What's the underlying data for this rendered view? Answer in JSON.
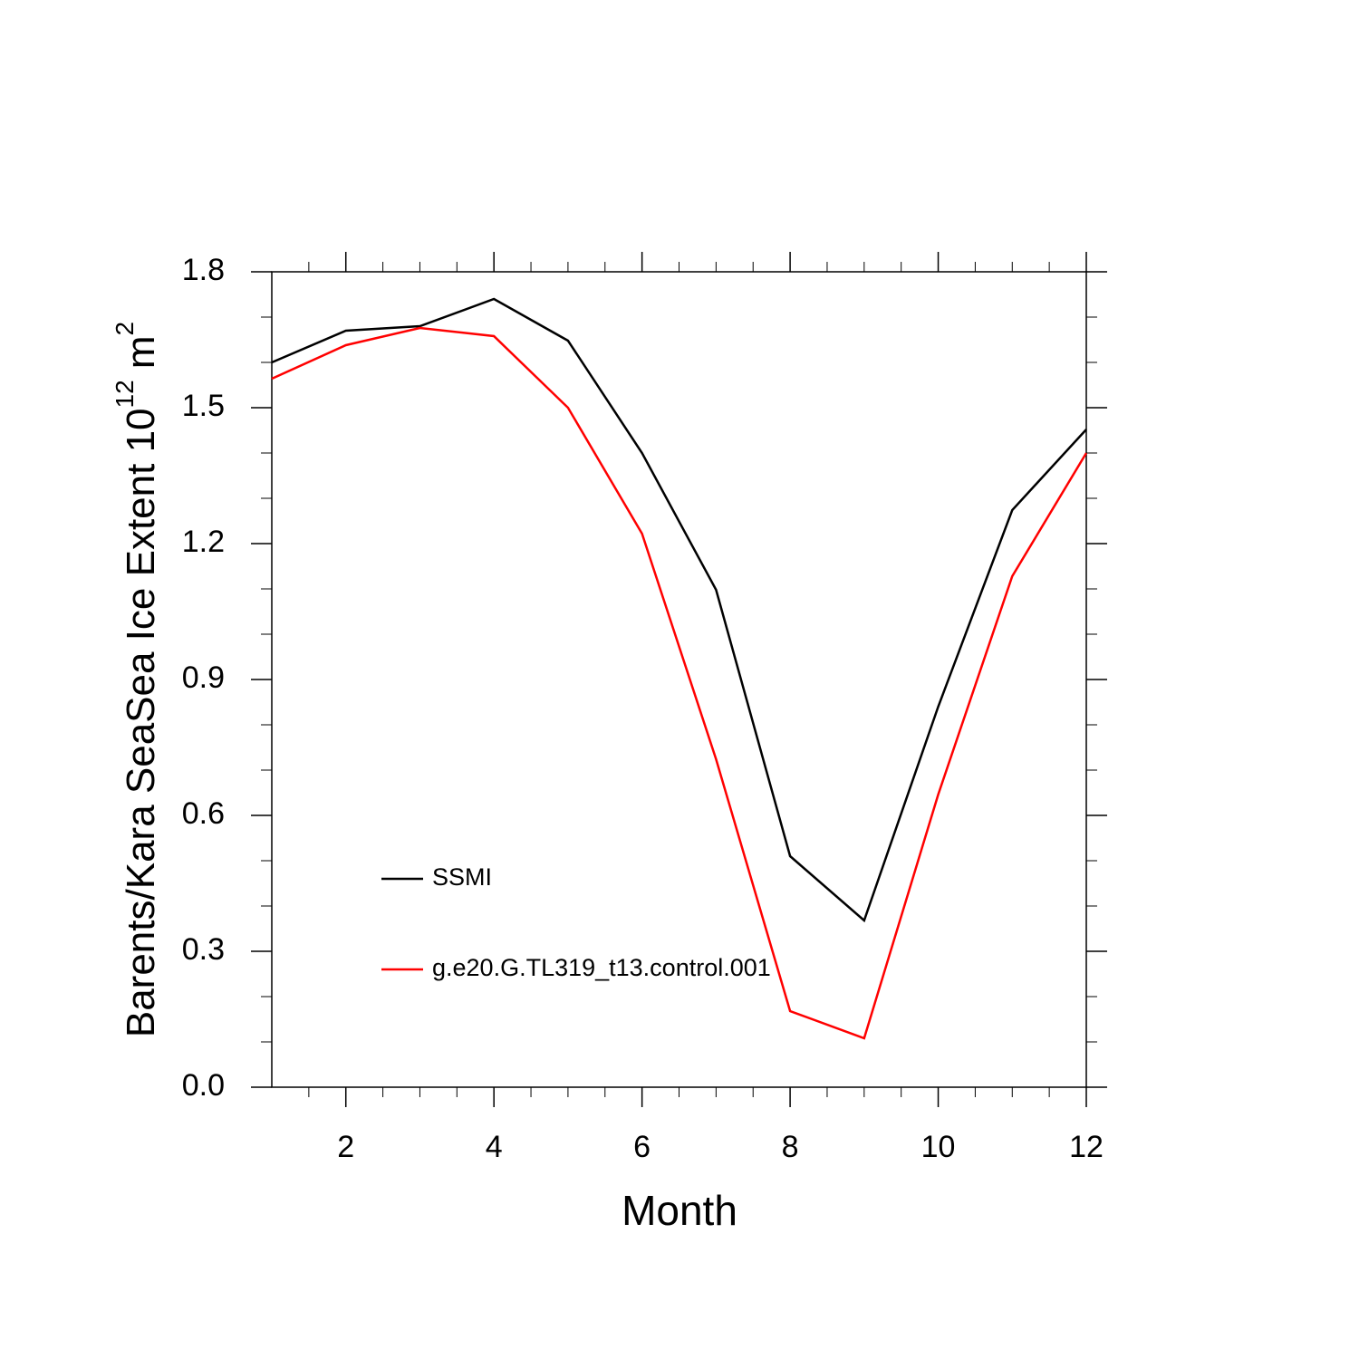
{
  "chart_data": {
    "type": "line",
    "xlabel": "Month",
    "ylabel_parts": [
      "Barents/Kara SeaSea Ice Extent 10",
      "12",
      " m",
      "2"
    ],
    "x": [
      1,
      2,
      3,
      4,
      5,
      6,
      7,
      8,
      9,
      10,
      11,
      12
    ],
    "series": [
      {
        "name": "SSMI",
        "color": "#000000",
        "values": [
          1.6,
          1.67,
          1.68,
          1.74,
          1.648,
          1.4,
          1.098,
          0.51,
          0.368,
          0.84,
          1.274,
          1.452
        ]
      },
      {
        "name": "g.e20.G.TL319_t13.control.001",
        "color": "#ff0000",
        "values": [
          1.564,
          1.638,
          1.676,
          1.658,
          1.5,
          1.222,
          0.724,
          0.168,
          0.108,
          0.646,
          1.128,
          1.4
        ]
      }
    ],
    "xlim": [
      1,
      12
    ],
    "ylim": [
      0,
      1.8
    ],
    "xticks": [
      2,
      4,
      6,
      8,
      10,
      12
    ],
    "yticks": [
      {
        "value": 0,
        "label": "0.0"
      },
      0.3,
      0.6,
      0.9,
      1.2,
      1.5,
      1.8
    ],
    "xminorticks": [
      1.5,
      2.5,
      3,
      3.5,
      4.5,
      5,
      5.5,
      6.5,
      7,
      7.5,
      8.5,
      9,
      9.5,
      10.5,
      11,
      11.5
    ],
    "yminorticks": [
      0.1,
      0.2,
      0.4,
      0.5,
      0.7,
      0.8,
      1.0,
      1.1,
      1.3,
      1.4,
      1.6,
      1.7
    ]
  }
}
